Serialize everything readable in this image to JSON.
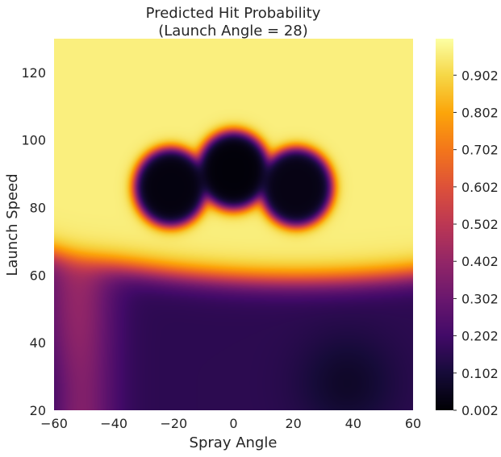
{
  "chart_data": {
    "type": "heatmap",
    "title": "Predicted Hit Probability",
    "subtitle": "(Launch Angle = 28)",
    "xlabel": "Spray Angle",
    "ylabel": "Launch Speed",
    "xlim": [
      -60,
      60
    ],
    "ylim": [
      20,
      130
    ],
    "x_ticks": [
      -60,
      -40,
      -20,
      0,
      20,
      40,
      60
    ],
    "y_ticks": [
      20,
      40,
      60,
      80,
      100,
      120
    ],
    "x_tick_labels": [
      "−60",
      "−40",
      "−20",
      "0",
      "20",
      "40",
      "60"
    ],
    "y_tick_labels": [
      "20",
      "40",
      "60",
      "80",
      "100",
      "120"
    ],
    "colorbar": {
      "colormap": "inferno",
      "min": 0.002,
      "max": 1.0,
      "ticks": [
        0.002,
        0.102,
        0.202,
        0.302,
        0.402,
        0.502,
        0.602,
        0.702,
        0.802,
        0.902
      ]
    },
    "grid": false,
    "surface_features": {
      "high_plateau": {
        "value": 0.96,
        "region": "launch speed above ~65"
      },
      "low_pockets": [
        {
          "center": [
            -21,
            86
          ],
          "value": 0.02
        },
        {
          "center": [
            0,
            91
          ],
          "value": 0.01
        },
        {
          "center": [
            21,
            86
          ],
          "value": 0.03
        }
      ],
      "low_floor": {
        "value": 0.15,
        "region": "launch speed below ~58, spray angle between about -45 and 60"
      }
    }
  }
}
